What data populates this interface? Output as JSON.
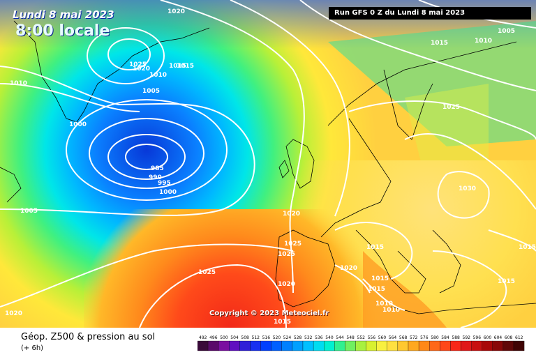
{
  "header": {
    "date_text": "Lundi 8 mai 2023",
    "time_text": "8:00 locale",
    "run_text": "Run GFS 0 Z du Lundi 8 mai 2023"
  },
  "copyright": "Copyright © 2023 Meteociel.fr",
  "footer": {
    "title": "Géop. Z500 & pression au sol",
    "subtitle": "(+ 6h)"
  },
  "legend": {
    "ticks": [
      "492",
      "496",
      "500",
      "504",
      "508",
      "512",
      "516",
      "520",
      "524",
      "528",
      "532",
      "536",
      "540",
      "544",
      "548",
      "552",
      "556",
      "560",
      "564",
      "568",
      "572",
      "576",
      "580",
      "584",
      "588",
      "592",
      "596",
      "600",
      "604",
      "608",
      "612"
    ],
    "colors": [
      "#3a0a3a",
      "#5a0a6a",
      "#7a10a0",
      "#6010c0",
      "#3020d8",
      "#1830f0",
      "#0040ff",
      "#0060ff",
      "#0080ff",
      "#00a0ff",
      "#00c0ff",
      "#00dcf0",
      "#00f0d0",
      "#30f090",
      "#70f060",
      "#a8f040",
      "#d8f030",
      "#f8f040",
      "#ffe040",
      "#ffc830",
      "#ffa820",
      "#ff8818",
      "#ff6818",
      "#ff4818",
      "#f82818",
      "#e01818",
      "#c81010",
      "#a80808",
      "#880808",
      "#600808",
      "#400404"
    ]
  },
  "isobar_labels": [
    {
      "text": "1020"
    },
    {
      "text": "1015"
    },
    {
      "text": "1010"
    },
    {
      "text": "1005"
    },
    {
      "text": "1025"
    },
    {
      "text": "1020"
    },
    {
      "text": "1015"
    },
    {
      "text": "1010"
    },
    {
      "text": "1005"
    },
    {
      "text": "1010"
    },
    {
      "text": "1000"
    },
    {
      "text": "985"
    },
    {
      "text": "990"
    },
    {
      "text": "995"
    },
    {
      "text": "1000"
    },
    {
      "text": "1005"
    },
    {
      "text": "1020"
    },
    {
      "text": "1025"
    },
    {
      "text": "1025"
    },
    {
      "text": "1025"
    },
    {
      "text": "1020"
    },
    {
      "text": "1020"
    },
    {
      "text": "1015"
    },
    {
      "text": "1015"
    },
    {
      "text": "1015"
    },
    {
      "text": "1015"
    },
    {
      "text": "1010"
    },
    {
      "text": "1010"
    },
    {
      "text": "1015"
    },
    {
      "text": "1025"
    },
    {
      "text": "1030"
    },
    {
      "text": "1015"
    },
    {
      "text": "1015"
    },
    {
      "text": "1020"
    }
  ]
}
